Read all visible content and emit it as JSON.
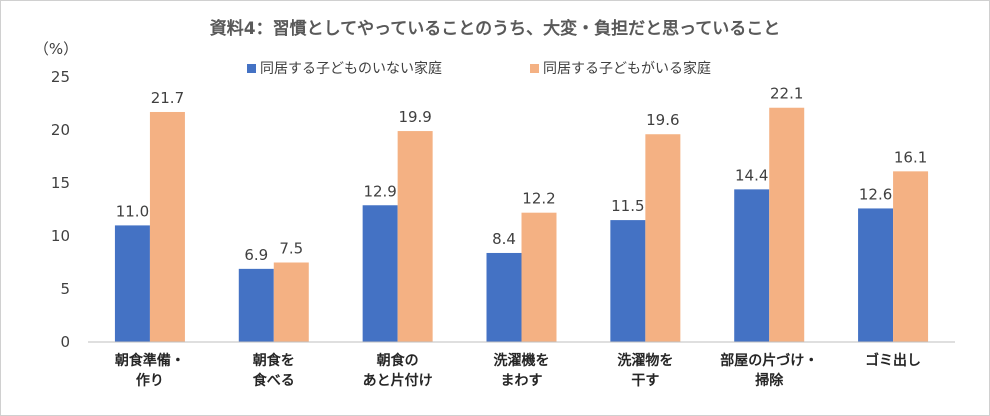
{
  "chart_data": {
    "type": "bar",
    "title": "資料4：習慣としてやっていることのうち、大変・負担だと思っていること",
    "unit_label": "（%）",
    "categories": [
      [
        "朝食準備・",
        "作り"
      ],
      [
        "朝食を",
        "食べる"
      ],
      [
        "朝食の",
        "あと片付け"
      ],
      [
        "洗濯機を",
        "まわす"
      ],
      [
        "洗濯物を",
        "干す"
      ],
      [
        "部屋の片づけ・",
        "掃除"
      ],
      [
        "ゴミ出し"
      ]
    ],
    "series": [
      {
        "name": "同居する子どものいない家庭",
        "color": "#4472C4",
        "values": [
          11.0,
          6.9,
          12.9,
          8.4,
          11.5,
          14.4,
          12.6
        ]
      },
      {
        "name": "同居する子どもがいる家庭",
        "color": "#F4B183",
        "values": [
          21.7,
          7.5,
          19.9,
          12.2,
          19.6,
          22.1,
          16.1
        ]
      }
    ],
    "ylim": [
      0,
      25
    ],
    "yticks": [
      0,
      5,
      10,
      15,
      20,
      25
    ],
    "grid": false,
    "legend_position": "top-center"
  }
}
